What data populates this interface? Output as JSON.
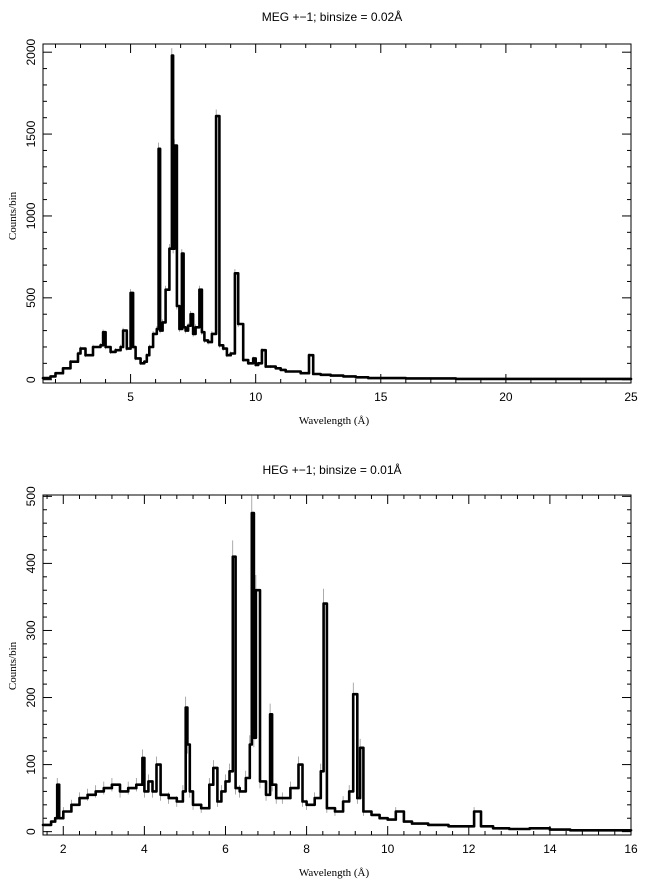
{
  "chart_data": [
    {
      "type": "line",
      "title": "MEG +−1; binsize = 0.02Å",
      "xlabel": "Wavelength (Å)",
      "ylabel": "Counts/bin",
      "xlim": [
        1.5,
        25
      ],
      "ylim": [
        -20,
        2050
      ],
      "xticks": [
        5,
        10,
        15,
        20,
        25
      ],
      "yticks": [
        0,
        500,
        1000,
        1500,
        2000
      ],
      "series": [
        {
          "x": [
            1.5,
            1.8,
            2.0,
            2.3,
            2.6,
            2.9,
            3.0,
            3.2,
            3.5,
            3.8,
            3.9,
            4.0,
            4.2,
            4.4,
            4.6,
            4.7,
            4.85,
            5.0,
            5.1,
            5.2,
            5.4,
            5.55,
            5.65,
            5.75,
            5.9,
            6.05,
            6.12,
            6.18,
            6.28,
            6.4,
            6.55,
            6.65,
            6.7,
            6.75,
            6.85,
            6.95,
            7.05,
            7.12,
            7.2,
            7.3,
            7.4,
            7.5,
            7.6,
            7.75,
            7.85,
            7.95,
            8.1,
            8.25,
            8.42,
            8.55,
            8.7,
            8.85,
            9.0,
            9.17,
            9.3,
            9.5,
            9.7,
            9.9,
            10.0,
            10.1,
            10.25,
            10.4,
            10.6,
            10.8,
            11.0,
            11.2,
            11.5,
            11.8,
            12.0,
            12.13,
            12.3,
            12.6,
            13.0,
            13.5,
            14.0,
            14.5,
            15.0,
            16.0,
            18.0,
            20.0,
            22.0,
            25.0
          ],
          "y": [
            10,
            20,
            40,
            70,
            110,
            160,
            190,
            150,
            200,
            210,
            290,
            200,
            170,
            180,
            200,
            300,
            190,
            530,
            200,
            130,
            100,
            110,
            150,
            200,
            280,
            310,
            1410,
            300,
            350,
            550,
            800,
            1980,
            800,
            1430,
            450,
            310,
            770,
            320,
            300,
            330,
            400,
            280,
            320,
            550,
            290,
            240,
            230,
            280,
            1610,
            210,
            190,
            150,
            160,
            650,
            340,
            120,
            100,
            130,
            90,
            100,
            180,
            80,
            80,
            70,
            60,
            50,
            50,
            40,
            40,
            150,
            35,
            30,
            25,
            20,
            15,
            10,
            10,
            8,
            5,
            5,
            5,
            5
          ]
        }
      ]
    },
    {
      "type": "line",
      "title": "HEG +−1; binsize = 0.01Å",
      "xlabel": "Wavelength (Å)",
      "ylabel": "Counts/bin",
      "xlim": [
        1.5,
        16
      ],
      "ylim": [
        -5,
        502
      ],
      "xticks": [
        2,
        4,
        6,
        8,
        10,
        12,
        14,
        16
      ],
      "yticks": [
        0,
        100,
        200,
        300,
        400,
        500
      ],
      "series": [
        {
          "x": [
            1.5,
            1.7,
            1.8,
            1.85,
            1.9,
            2.0,
            2.2,
            2.4,
            2.6,
            2.8,
            3.0,
            3.2,
            3.4,
            3.6,
            3.8,
            3.95,
            4.0,
            4.1,
            4.2,
            4.3,
            4.4,
            4.6,
            4.8,
            4.95,
            5.02,
            5.06,
            5.12,
            5.2,
            5.4,
            5.6,
            5.7,
            5.8,
            5.9,
            6.0,
            6.1,
            6.18,
            6.25,
            6.35,
            6.5,
            6.6,
            6.65,
            6.7,
            6.75,
            6.85,
            7.0,
            7.1,
            7.15,
            7.25,
            7.4,
            7.6,
            7.8,
            7.9,
            8.0,
            8.2,
            8.35,
            8.42,
            8.5,
            8.7,
            8.9,
            9.05,
            9.15,
            9.25,
            9.32,
            9.4,
            9.6,
            9.8,
            10.0,
            10.2,
            10.4,
            10.6,
            10.8,
            11.0,
            11.5,
            11.9,
            12.13,
            12.3,
            12.6,
            13.0,
            13.5,
            14.0,
            14.5,
            15.0,
            15.5,
            16.0
          ],
          "y": [
            10,
            15,
            20,
            70,
            20,
            30,
            40,
            50,
            55,
            60,
            65,
            70,
            60,
            65,
            70,
            110,
            60,
            75,
            60,
            100,
            55,
            50,
            45,
            60,
            185,
            130,
            60,
            40,
            35,
            70,
            95,
            45,
            60,
            75,
            90,
            410,
            65,
            60,
            80,
            130,
            475,
            140,
            360,
            75,
            55,
            175,
            70,
            50,
            50,
            65,
            100,
            45,
            40,
            50,
            90,
            340,
            35,
            30,
            45,
            60,
            205,
            50,
            125,
            30,
            25,
            20,
            18,
            30,
            15,
            12,
            12,
            10,
            8,
            8,
            30,
            8,
            5,
            4,
            5,
            3,
            2,
            2,
            2,
            2
          ]
        }
      ]
    }
  ]
}
